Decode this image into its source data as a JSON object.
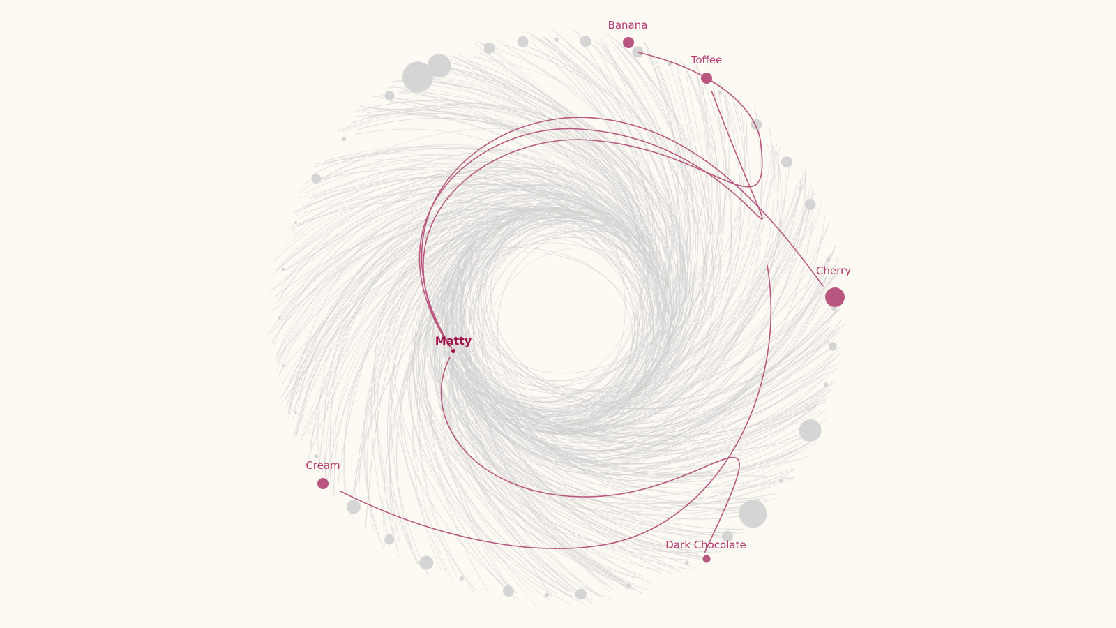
{
  "diagram": {
    "center_person": "Matty",
    "highlighted_flavors": [
      "Banana",
      "Toffee",
      "Cherry",
      "Dark Chocolate",
      "Cream"
    ],
    "colors": {
      "background": "#fdfaf4",
      "highlight": "#b8567f",
      "highlight_text": "#b23a6e",
      "center_text": "#a0134f",
      "muted_node": "#d5d5d5",
      "muted_link": "#d2d2d2"
    }
  }
}
